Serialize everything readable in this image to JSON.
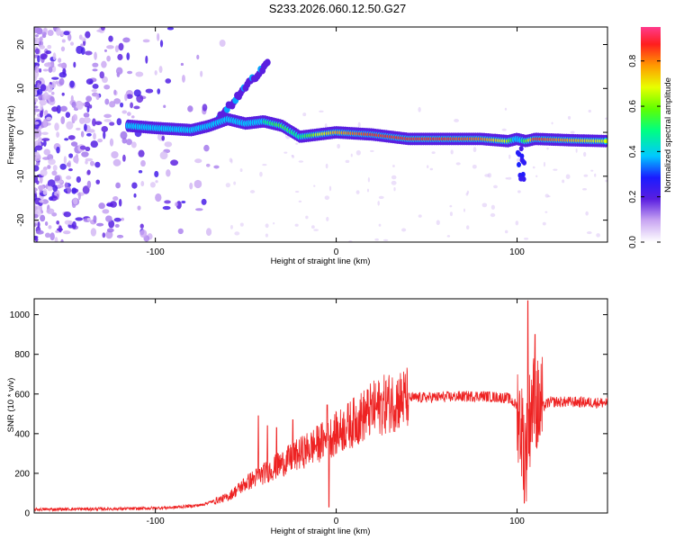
{
  "title": "S233.2026.060.12.50.G27",
  "chart_data": [
    {
      "type": "heatmap",
      "xlabel": "Height of straight line (km)",
      "ylabel": "Frequency (Hz)",
      "xlim": [
        -167,
        150
      ],
      "ylim": [
        -25,
        24
      ],
      "xticks": [
        -100,
        0,
        100
      ],
      "xtick_labels": [
        "-100",
        "0",
        "100"
      ],
      "yticks": [
        -20,
        -10,
        0,
        10,
        20
      ],
      "ytick_labels": [
        "-20",
        "-10",
        "0",
        "10",
        "20"
      ],
      "ridge": {
        "description_points_x": [
          -115,
          -100,
          -80,
          -70,
          -60,
          -50,
          -40,
          -30,
          -20,
          -10,
          0,
          20,
          40,
          60,
          80,
          95,
          100,
          105,
          110,
          130,
          150
        ],
        "freq_hz": [
          1.5,
          1.0,
          0.5,
          1.5,
          3.0,
          2.0,
          2.5,
          1.5,
          -1.0,
          -0.5,
          0.0,
          -0.5,
          -1.5,
          -1.5,
          -1.5,
          -2.0,
          -1.5,
          -2.0,
          -1.5,
          -1.8,
          -2.0
        ],
        "amplitude": [
          0.3,
          0.3,
          0.4,
          0.5,
          0.5,
          0.4,
          0.5,
          0.6,
          0.5,
          0.7,
          0.8,
          0.9,
          0.9,
          0.9,
          0.85,
          0.7,
          0.4,
          0.6,
          0.9,
          0.8,
          0.7
        ]
      },
      "chirp": {
        "x": [
          -65,
          -38
        ],
        "freq_hz": [
          3,
          16
        ]
      },
      "colorbar": {
        "label": "Normalized spectral amplitude",
        "range": [
          0.0,
          0.95
        ],
        "ticks": [
          0.0,
          0.2,
          0.4,
          0.6,
          0.8
        ],
        "tick_labels": [
          "0.0",
          "0.2",
          "0.4",
          "0.6",
          "0.8"
        ]
      }
    },
    {
      "type": "line",
      "xlabel": "Height of straight line (km)",
      "ylabel": "SNR (10 * v/v)",
      "xlim": [
        -167,
        150
      ],
      "ylim": [
        0,
        1080
      ],
      "xticks": [
        -100,
        0,
        100
      ],
      "xtick_labels": [
        "-100",
        "0",
        "100"
      ],
      "yticks": [
        0,
        200,
        400,
        600,
        800,
        1000
      ],
      "ytick_labels": [
        "0",
        "200",
        "400",
        "600",
        "800",
        "1000"
      ],
      "series": [
        {
          "name": "SNR",
          "color": "#ee2222",
          "x": [
            -167,
            -140,
            -110,
            -90,
            -75,
            -60,
            -50,
            -40,
            -30,
            -20,
            -10,
            0,
            10,
            20,
            30,
            40,
            60,
            80,
            95,
            100,
            105,
            108,
            112,
            118,
            130,
            150
          ],
          "y": [
            18,
            20,
            22,
            28,
            40,
            80,
            150,
            200,
            250,
            300,
            350,
            400,
            460,
            520,
            560,
            580,
            585,
            590,
            580,
            540,
            300,
            560,
            520,
            560,
            560,
            555
          ],
          "spikes": [
            {
              "x": -43,
              "y": 490
            },
            {
              "x": -38,
              "y": 440
            },
            {
              "x": -33,
              "y": 430
            },
            {
              "x": -24,
              "y": 470
            },
            {
              "x": -5,
              "y": 545
            },
            {
              "x": -4,
              "y": 30
            },
            {
              "x": 106,
              "y": 1070
            },
            {
              "x": 104,
              "y": 50
            },
            {
              "x": 110,
              "y": 900
            }
          ]
        }
      ]
    }
  ]
}
